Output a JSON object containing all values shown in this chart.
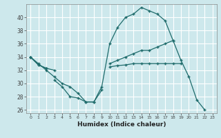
{
  "background_color": "#cde8ec",
  "line_color": "#1e6b6b",
  "grid_color": "#ffffff",
  "xlabel": "Humidex (Indice chaleur)",
  "xlim": [
    -0.5,
    23.5
  ],
  "ylim": [
    25.5,
    42.0
  ],
  "yticks": [
    26,
    28,
    30,
    32,
    34,
    36,
    38,
    40
  ],
  "xticks": [
    0,
    1,
    2,
    3,
    4,
    5,
    6,
    7,
    8,
    9,
    10,
    11,
    12,
    13,
    14,
    15,
    16,
    17,
    18,
    19,
    20,
    21,
    22,
    23
  ],
  "line1": [
    34,
    33,
    32,
    31,
    30,
    29.5,
    28.5,
    27.2,
    27.2,
    29.5,
    36,
    38.5,
    40,
    40.5,
    41.5,
    41,
    40.5,
    39.5,
    36.5,
    33.5,
    31,
    27.5,
    26,
    null
  ],
  "line2": [
    34,
    32.8,
    32.3,
    32,
    null,
    null,
    null,
    null,
    null,
    null,
    33,
    33.5,
    34,
    34.5,
    35,
    35,
    35.5,
    36,
    36.5,
    null,
    null,
    null,
    null,
    null
  ],
  "line3": [
    34,
    32.8,
    32.3,
    null,
    null,
    null,
    null,
    null,
    null,
    null,
    32.5,
    32.7,
    32.8,
    33,
    33,
    33,
    33,
    33,
    33,
    33,
    null,
    null,
    null,
    null
  ],
  "line4": [
    null,
    null,
    null,
    30.5,
    29.5,
    28,
    27.8,
    27.2,
    27.2,
    29,
    null,
    null,
    null,
    null,
    null,
    null,
    null,
    null,
    null,
    null,
    null,
    null,
    null,
    null
  ]
}
